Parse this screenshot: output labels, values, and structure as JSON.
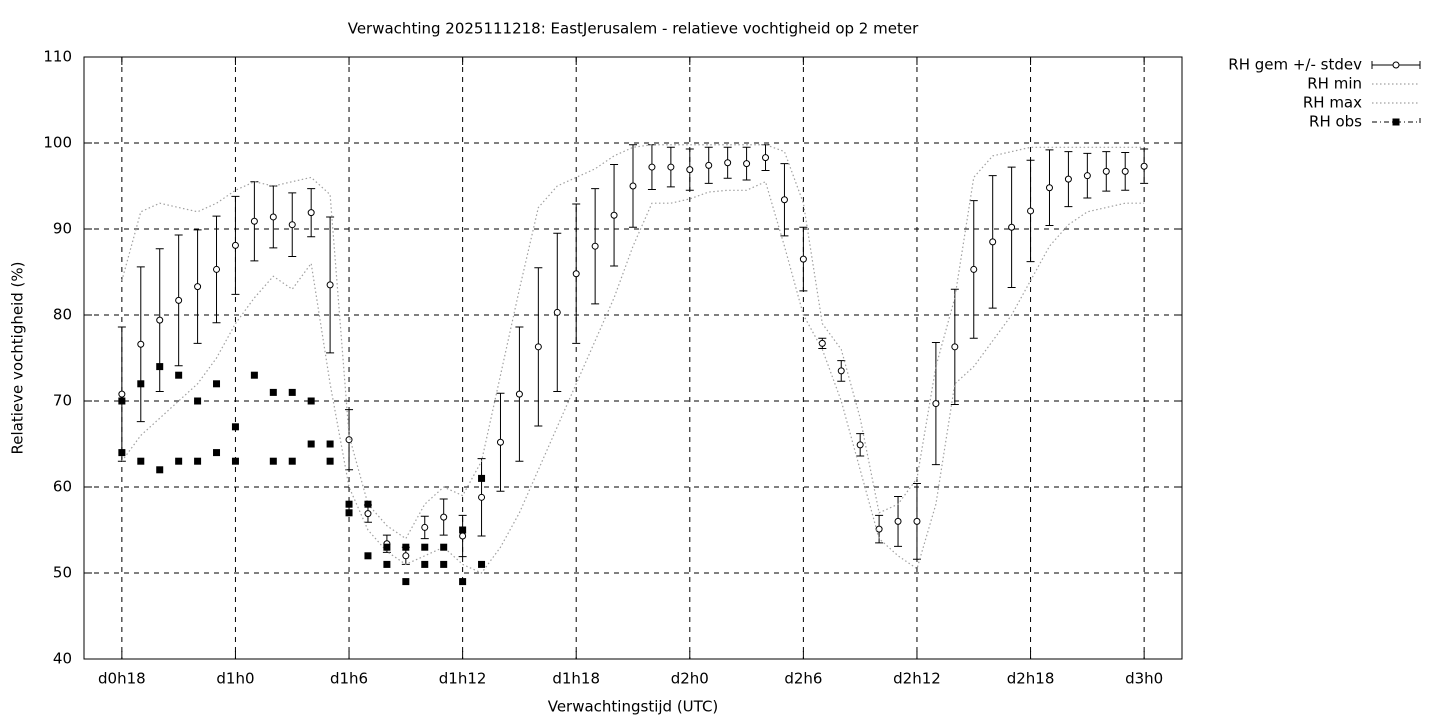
{
  "chart_data": {
    "type": "line",
    "title": "Verwachting 2025111218: EastJerusalem - relatieve vochtigheid op 2 meter",
    "x_label": "Verwachtingstijd (UTC)",
    "y_label": "Relatieve vochtigheid (%)",
    "x": [
      18,
      19,
      20,
      21,
      22,
      23,
      24,
      25,
      26,
      27,
      28,
      29,
      30,
      31,
      32,
      33,
      34,
      35,
      36,
      37,
      38,
      39,
      40,
      41,
      42,
      43,
      44,
      45,
      46,
      47,
      48,
      49,
      50,
      51,
      52,
      53,
      54,
      55,
      56,
      57,
      58,
      59,
      60,
      61,
      62,
      63,
      64,
      65,
      66,
      67,
      68,
      69,
      70,
      71,
      72
    ],
    "xlim": [
      16,
      74
    ],
    "xticks": [
      {
        "value": 18,
        "label": "d0h18"
      },
      {
        "value": 24,
        "label": "d1h0"
      },
      {
        "value": 30,
        "label": "d1h6"
      },
      {
        "value": 36,
        "label": "d1h12"
      },
      {
        "value": 42,
        "label": "d1h18"
      },
      {
        "value": 48,
        "label": "d2h0"
      },
      {
        "value": 54,
        "label": "d2h6"
      },
      {
        "value": 60,
        "label": "d2h12"
      },
      {
        "value": 66,
        "label": "d2h18"
      },
      {
        "value": 72,
        "label": "d3h0"
      }
    ],
    "ylim": [
      40,
      110
    ],
    "yticks": [
      40,
      50,
      60,
      70,
      80,
      90,
      100,
      110
    ],
    "grid": true,
    "legend": "top-right-outside",
    "series": [
      {
        "name": "RH gem +/- stdev",
        "style": "errorbars",
        "color": "#000000",
        "values": [
          70.8,
          76.6,
          79.4,
          81.7,
          83.3,
          85.3,
          88.1,
          90.9,
          91.4,
          90.5,
          91.9,
          83.5,
          65.5,
          56.9,
          53.4,
          52.0,
          55.3,
          56.5,
          54.3,
          58.8,
          65.2,
          70.8,
          76.3,
          80.3,
          84.8,
          88.0,
          91.6,
          95.0,
          97.2,
          97.2,
          96.9,
          97.4,
          97.7,
          97.6,
          98.3,
          93.4,
          86.5,
          76.7,
          73.5,
          64.9,
          55.1,
          56.0,
          56.0,
          69.7,
          76.3,
          85.3,
          88.5,
          90.2,
          92.1,
          94.8,
          95.8,
          96.2,
          96.7,
          96.7,
          97.3
        ],
        "errors": [
          7.8,
          9.0,
          8.3,
          7.6,
          6.6,
          6.2,
          5.7,
          4.6,
          3.6,
          3.7,
          2.8,
          7.9,
          3.5,
          1.0,
          1.0,
          1.0,
          1.3,
          2.1,
          2.4,
          4.5,
          5.7,
          7.8,
          9.2,
          9.2,
          8.1,
          6.7,
          5.9,
          4.8,
          2.6,
          2.3,
          2.4,
          2.1,
          1.8,
          1.9,
          1.5,
          4.2,
          3.7,
          0.6,
          1.2,
          1.3,
          1.6,
          2.9,
          4.4,
          7.1,
          6.7,
          8.0,
          7.7,
          7.0,
          5.9,
          4.4,
          3.2,
          2.6,
          2.3,
          2.2,
          2.0
        ]
      },
      {
        "name": "RH min",
        "style": "dotted",
        "color": "#a0a0a0",
        "values": [
          63,
          66,
          68,
          70,
          72,
          75,
          79,
          82,
          84.5,
          83,
          86,
          72,
          60,
          55,
          52.5,
          51,
          52,
          53,
          51,
          50,
          53,
          57,
          62,
          67,
          72,
          77,
          82,
          88,
          93,
          93,
          93.5,
          94.3,
          94.5,
          94.5,
          95.5,
          88,
          80,
          76,
          70,
          62,
          54,
          52,
          50.5,
          58,
          72,
          74,
          77,
          80,
          84,
          88,
          90.5,
          92,
          92.5,
          93,
          93
        ]
      },
      {
        "name": "RH max",
        "style": "dotted",
        "color": "#a0a0a0",
        "values": [
          84,
          92,
          93,
          92.5,
          92,
          93,
          94.5,
          95.5,
          95,
          95.5,
          96,
          94,
          66,
          58,
          55.5,
          54,
          58,
          60,
          59,
          63,
          73,
          83,
          92.5,
          95,
          96,
          97,
          98.5,
          99.5,
          99.8,
          99.8,
          99.8,
          99.8,
          99.8,
          99.8,
          99.8,
          99,
          93,
          79,
          76,
          68,
          57,
          58,
          61,
          74,
          82,
          96,
          98.5,
          99,
          99.5,
          99.5,
          99.5,
          99.5,
          99.5,
          99.5,
          99.5
        ]
      },
      {
        "name": "RH obs",
        "style": "points",
        "color": "#000000",
        "x": [
          18,
          18,
          19,
          19,
          20,
          20,
          21,
          21,
          22,
          22,
          23,
          23,
          24,
          24,
          25,
          26,
          26,
          27,
          27,
          28,
          28,
          29,
          29,
          30,
          30,
          31,
          31,
          32,
          32,
          33,
          33,
          34,
          34,
          35,
          35,
          36,
          36,
          37,
          37
        ],
        "values": [
          70,
          64,
          72,
          63,
          74,
          62,
          73,
          63,
          70,
          63,
          72,
          64,
          67,
          63,
          73,
          71,
          63,
          71,
          63,
          70,
          65,
          65,
          63,
          58,
          57,
          58,
          52,
          53,
          51,
          53,
          49,
          53,
          51,
          53,
          51,
          55,
          49,
          61,
          51
        ]
      }
    ]
  }
}
